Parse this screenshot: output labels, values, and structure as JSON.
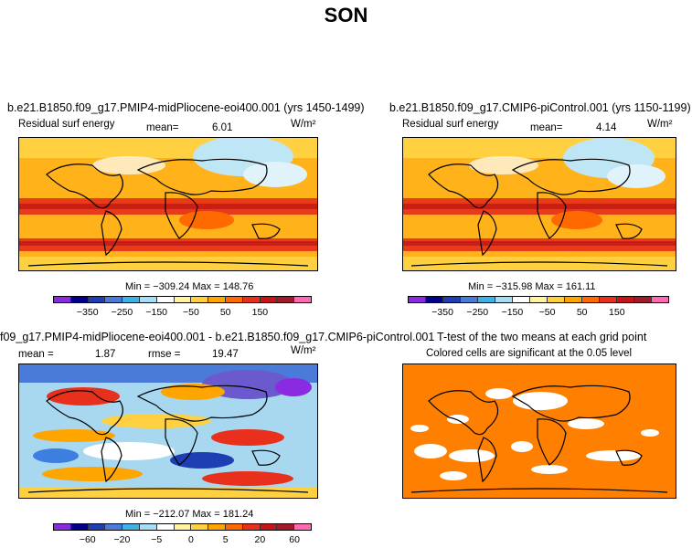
{
  "season": "SON",
  "panels": {
    "top_left": {
      "title": "b.e21.B1850.f09_g17.PMIP4-midPliocene-eoi400.001 (yrs 1450-1499)",
      "variable": "Residual surf energy",
      "mean_label": "mean=",
      "mean_value": "6.01",
      "units": "W/m²",
      "minmax": "Min = −309.24 Max = 148.76"
    },
    "top_right": {
      "title": "b.e21.B1850.f09_g17.CMIP6-piControl.001 (yrs 1150-1199)",
      "variable": "Residual surf energy",
      "mean_label": "mean=",
      "mean_value": "4.14",
      "units": "W/m²",
      "minmax": "Min = −315.98 Max = 161.11"
    },
    "bottom_left": {
      "title": "f09_g17.PMIP4-midPliocene-eoi400.001 - b.e21.B1850.f09_g17.CMIP6-piControl.001",
      "mean_label": "mean =",
      "mean_value": "1.87",
      "rmse_label": "rmse =",
      "rmse_value": "19.47",
      "units": "W/m²",
      "minmax": "Min = −212.07 Max = 181.24"
    },
    "bottom_right": {
      "title": "T-test of the two means at each grid point",
      "subtitle": "Colored cells are significant at the 0.05 level"
    }
  },
  "colorbars": {
    "top": {
      "colors": [
        "#8a2be2",
        "#00008b",
        "#1e3fb4",
        "#4a7bd8",
        "#3cb2e6",
        "#a6dcf4",
        "#ffffff",
        "#fff3a0",
        "#ffd040",
        "#ffa500",
        "#ff6a00",
        "#e8301c",
        "#c81414",
        "#a31a2a",
        "#ff69b4"
      ],
      "ticks": [
        "−350",
        "−250",
        "−150",
        "−50",
        "50",
        "150"
      ]
    },
    "bottom": {
      "colors": [
        "#8a2be2",
        "#00008b",
        "#1e3fb4",
        "#4a7bd8",
        "#3cb2e6",
        "#a6dcf4",
        "#ffffff",
        "#fff3a0",
        "#ffd040",
        "#ffa500",
        "#ff6a00",
        "#e8301c",
        "#c81414",
        "#a31a2a",
        "#ff69b4"
      ],
      "ticks": [
        "−60",
        "−20",
        "−5",
        "0",
        "5",
        "20",
        "60"
      ]
    }
  },
  "map_colors": {
    "ocean_base": "#ffb21a",
    "tropical_band": "#e83b18",
    "strong_band": "#c81e14",
    "polar_low": "#bfe6f5",
    "deep_low": "#3c7fe0",
    "land_yellow": "#ffd040",
    "diff_base": "#a8d8f0",
    "ttest_fill": "#ff7f00"
  }
}
